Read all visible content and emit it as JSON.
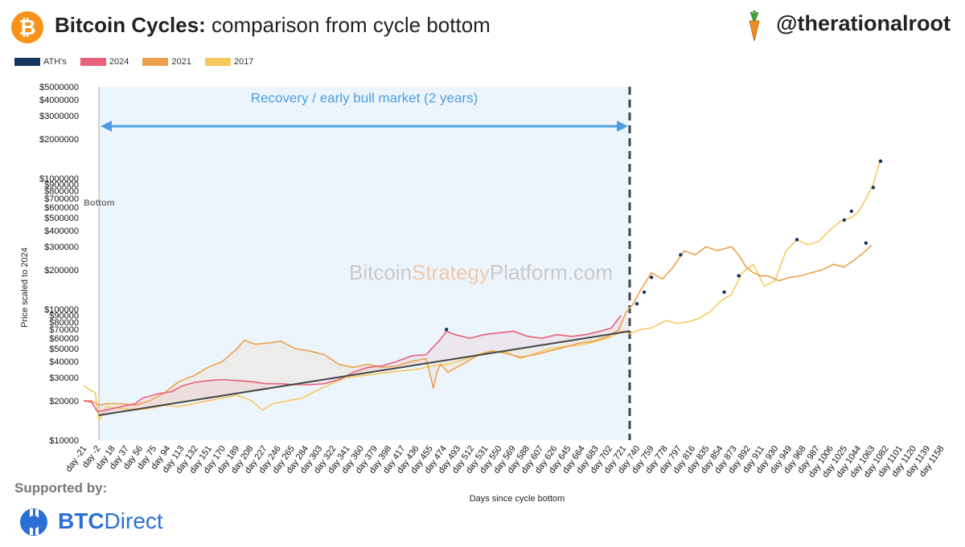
{
  "header": {
    "title_bold": "Bitcoin Cycles:",
    "title_rest": " comparison from cycle bottom",
    "handle": "@therationalroot",
    "logo_icon": "bitcoin-icon",
    "handle_icon": "carrot-icon"
  },
  "legend": [
    {
      "label": "ATH's",
      "color": "#14365f"
    },
    {
      "label": "2024",
      "color": "#e8607a"
    },
    {
      "label": "2021",
      "color": "#eda04e"
    },
    {
      "label": "2017",
      "color": "#f5c960"
    }
  ],
  "footer": {
    "supported_label": "Supported by:",
    "sponsor_bold": "BTC",
    "sponsor_rest": "Direct"
  },
  "chart_data": {
    "type": "line",
    "y_scale": "log",
    "ylabel": "Price scaled to 2024",
    "xlabel": "Days since cycle bottom",
    "ylim": [
      10000,
      5000000
    ],
    "xlim": [
      -21,
      1158
    ],
    "watermark": {
      "part1": "Bitcoin",
      "part2": "Strategy",
      "part3": "Platform.com"
    },
    "annotations": {
      "bottom_label": "Bottom",
      "bottom_day": 0,
      "recovery_label": "Recovery / early bull market (2 years)",
      "recovery_start": 0,
      "recovery_end": 730
    },
    "y_ticks": [
      {
        "value": 10000,
        "label": "$10000"
      },
      {
        "value": 20000,
        "label": "$20000"
      },
      {
        "value": 30000,
        "label": "$30000"
      },
      {
        "value": 40000,
        "label": "$40000"
      },
      {
        "value": 50000,
        "label": "$50000"
      },
      {
        "value": 60000,
        "label": "$60000"
      },
      {
        "value": 70000,
        "label": "$70000"
      },
      {
        "value": 80000,
        "label": "$80000"
      },
      {
        "value": 90000,
        "label": "$90000"
      },
      {
        "value": 100000,
        "label": "$100000"
      },
      {
        "value": 200000,
        "label": "Price $200000"
      },
      {
        "value": 300000,
        "label": "$300000"
      },
      {
        "value": 400000,
        "label": "$400000"
      },
      {
        "value": 500000,
        "label": "$500000"
      },
      {
        "value": 600000,
        "label": "$600000"
      },
      {
        "value": 700000,
        "label": "$700000"
      },
      {
        "value": 800000,
        "label": "$800000"
      },
      {
        "value": 900000,
        "label": "$900000"
      },
      {
        "value": 1000000,
        "label": "$1000000"
      },
      {
        "value": 2000000,
        "label": "$2000000"
      },
      {
        "value": 3000000,
        "label": "$3000000"
      },
      {
        "value": 4000000,
        "label": "$4000000"
      },
      {
        "value": 5000000,
        "label": "$5000000"
      }
    ],
    "x_ticks": [
      "day -21",
      "day -2",
      "day 18",
      "day 37",
      "day 56",
      "day 75",
      "day 94",
      "day 113",
      "day 132",
      "day 151",
      "day 170",
      "day 189",
      "day 208",
      "day 227",
      "day 246",
      "day 265",
      "day 284",
      "day 303",
      "day 322",
      "day 341",
      "day 360",
      "day 379",
      "day 398",
      "day 417",
      "day 436",
      "day 455",
      "day 474",
      "day 493",
      "day 512",
      "day 531",
      "day 550",
      "day 569",
      "day 588",
      "day 607",
      "day 626",
      "day 645",
      "day 664",
      "day 683",
      "day 702",
      "day 721",
      "day 740",
      "day 759",
      "day 778",
      "day 797",
      "day 816",
      "day 835",
      "day 854",
      "day 873",
      "day 892",
      "day 911",
      "day 930",
      "day 949",
      "day 968",
      "day 987",
      "day 1006",
      "day 1025",
      "day 1044",
      "day 1063",
      "day 1082",
      "day 1101",
      "day 1120",
      "day 1139",
      "day 1158"
    ],
    "trendline": {
      "x": [
        0,
        730
      ],
      "y": [
        15500,
        68000
      ]
    },
    "series": [
      {
        "name": "2024",
        "color": "#e8607a",
        "x": [
          -21,
          -10,
          -2,
          10,
          30,
          50,
          60,
          80,
          100,
          115,
          130,
          150,
          170,
          190,
          210,
          230,
          250,
          270,
          290,
          310,
          330,
          350,
          370,
          390,
          410,
          430,
          450,
          470,
          478,
          490,
          510,
          530,
          550,
          570,
          590,
          610,
          630,
          650,
          670,
          690,
          705,
          718
        ],
        "y": [
          20000,
          19500,
          16500,
          17000,
          18000,
          19000,
          21000,
          22500,
          23500,
          26000,
          27500,
          28500,
          29000,
          28500,
          28000,
          27000,
          27000,
          26500,
          26500,
          27000,
          29000,
          33000,
          36000,
          37000,
          40000,
          44000,
          45000,
          59000,
          68000,
          64000,
          60000,
          64000,
          66000,
          68000,
          62000,
          60000,
          64000,
          62000,
          64000,
          68000,
          72000,
          90000
        ]
      },
      {
        "name": "2021",
        "color": "#eda04e",
        "x": [
          -21,
          -10,
          0,
          10,
          30,
          50,
          70,
          90,
          110,
          130,
          150,
          170,
          190,
          200,
          215,
          230,
          250,
          270,
          290,
          310,
          330,
          350,
          370,
          390,
          410,
          430,
          450,
          460,
          465,
          470,
          480,
          500,
          520,
          540,
          560,
          580,
          600,
          620,
          640,
          660,
          680,
          700,
          715,
          725,
          735,
          745,
          760,
          775,
          790,
          805,
          820,
          835,
          850,
          870,
          880,
          890,
          900,
          910,
          920,
          935,
          950,
          965,
          980,
          995,
          1010,
          1025,
          1040,
          1055,
          1063
        ],
        "y": [
          20000,
          20000,
          18500,
          19000,
          19000,
          18500,
          20000,
          23000,
          28000,
          31000,
          36000,
          40000,
          50000,
          58000,
          54000,
          55000,
          57000,
          50000,
          48000,
          45000,
          38000,
          36000,
          38000,
          36000,
          37000,
          40000,
          42000,
          25000,
          33000,
          38000,
          33000,
          38000,
          44000,
          48000,
          46000,
          43000,
          45000,
          48000,
          51000,
          55000,
          57000,
          62000,
          70000,
          95000,
          110000,
          140000,
          190000,
          170000,
          210000,
          280000,
          260000,
          300000,
          280000,
          300000,
          260000,
          210000,
          190000,
          180000,
          180000,
          165000,
          175000,
          180000,
          190000,
          200000,
          220000,
          210000,
          240000,
          280000,
          310000
        ]
      },
      {
        "name": "2017",
        "color": "#f5c960",
        "x": [
          -21,
          -5,
          0,
          10,
          30,
          50,
          70,
          90,
          110,
          130,
          150,
          170,
          190,
          210,
          225,
          240,
          260,
          280,
          300,
          320,
          340,
          360,
          380,
          400,
          420,
          440,
          460,
          480,
          500,
          520,
          540,
          560,
          580,
          600,
          620,
          640,
          660,
          680,
          700,
          720,
          730,
          745,
          760,
          780,
          795,
          810,
          825,
          840,
          855,
          870,
          885,
          900,
          915,
          930,
          945,
          960,
          975,
          990,
          1005,
          1020,
          1035,
          1045,
          1055,
          1065,
          1075
        ],
        "y": [
          26000,
          23000,
          14000,
          18000,
          17500,
          17000,
          17500,
          18500,
          18000,
          19000,
          20000,
          21000,
          22000,
          20000,
          17000,
          19000,
          20000,
          21000,
          24000,
          27000,
          30000,
          31000,
          32000,
          33000,
          34000,
          35000,
          37000,
          38000,
          41000,
          45000,
          48000,
          47000,
          42000,
          46000,
          50000,
          52000,
          53000,
          56000,
          60000,
          68000,
          65000,
          70000,
          72000,
          82000,
          78000,
          80000,
          85000,
          95000,
          115000,
          130000,
          190000,
          220000,
          150000,
          165000,
          280000,
          340000,
          310000,
          330000,
          400000,
          470000,
          500000,
          560000,
          700000,
          900000,
          1400000
        ]
      }
    ],
    "ath_markers": [
      {
        "x": 478,
        "y": 70000
      },
      {
        "x": 740,
        "y": 110000
      },
      {
        "x": 750,
        "y": 135000
      },
      {
        "x": 760,
        "y": 175000
      },
      {
        "x": 800,
        "y": 260000
      },
      {
        "x": 860,
        "y": 135000
      },
      {
        "x": 880,
        "y": 180000
      },
      {
        "x": 960,
        "y": 340000
      },
      {
        "x": 1025,
        "y": 480000
      },
      {
        "x": 1035,
        "y": 560000
      },
      {
        "x": 1055,
        "y": 320000
      },
      {
        "x": 1065,
        "y": 850000
      },
      {
        "x": 1075,
        "y": 1350000
      }
    ]
  }
}
